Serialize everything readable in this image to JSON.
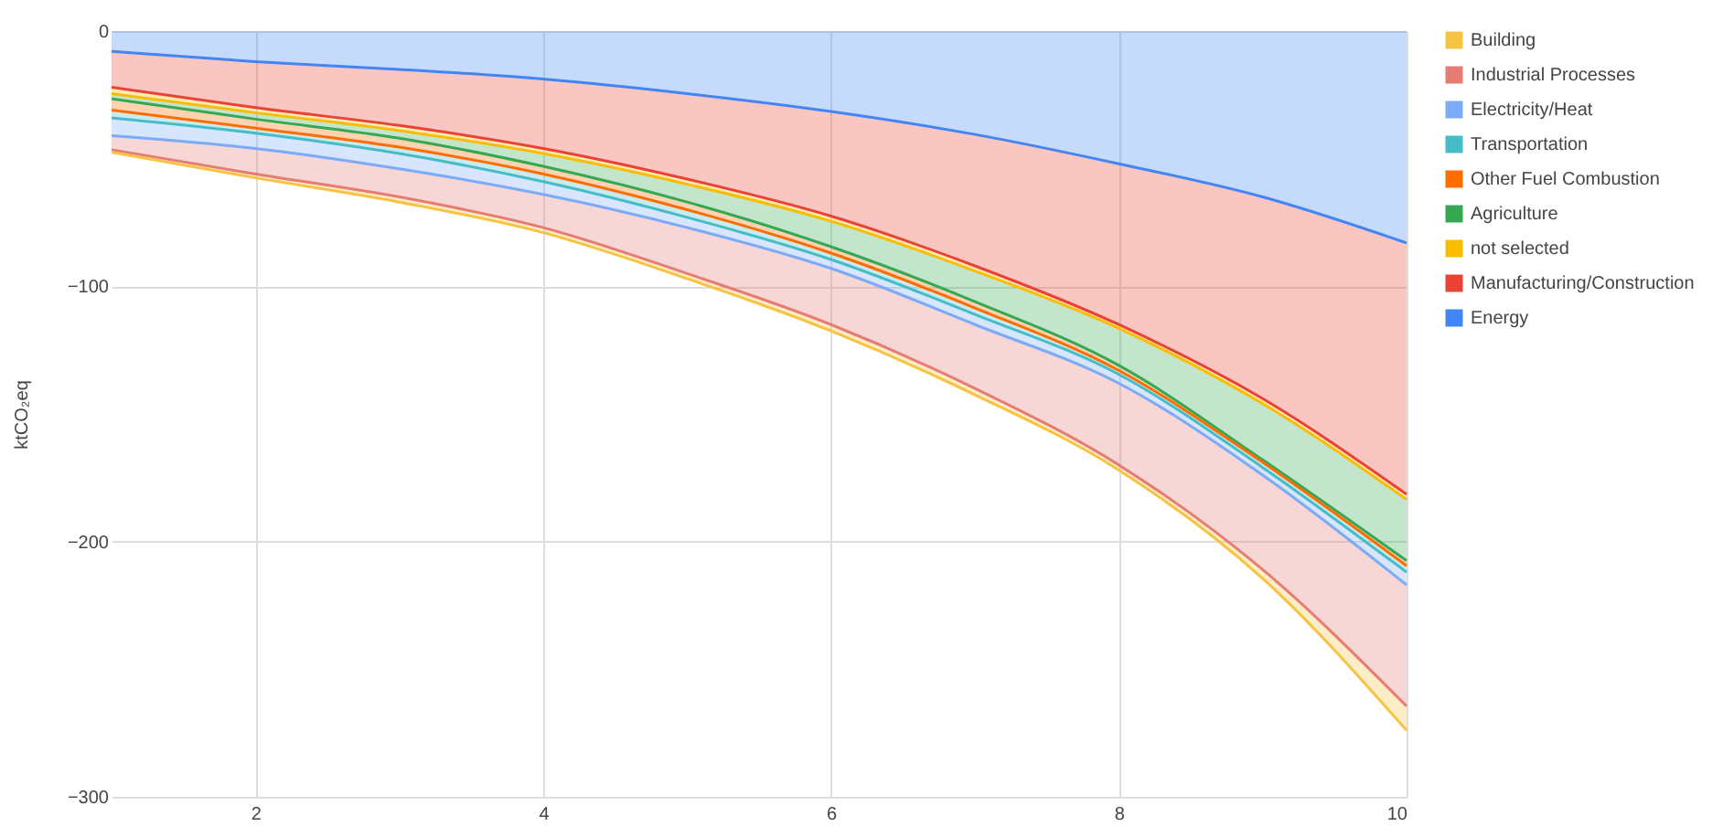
{
  "chart_data": {
    "type": "area",
    "stacked": true,
    "ylabel": "ktCO₂eq",
    "x": [
      1,
      2,
      3,
      4,
      5,
      6,
      7,
      8,
      9,
      10
    ],
    "xlim": [
      1,
      10
    ],
    "xticks": [
      2,
      4,
      6,
      8,
      10
    ],
    "ylim": [
      -300,
      0
    ],
    "yticks": [
      -300,
      -200,
      -100,
      0
    ],
    "grid": true,
    "legend": "top right",
    "series": [
      {
        "name": "Energy",
        "color": "#4285f4",
        "values": [
          -8,
          -12,
          -15,
          -18.8,
          -24.5,
          -31.5,
          -40.5,
          -52,
          -65,
          -83
        ]
      },
      {
        "name": "Manufacturing/Construction",
        "color": "#ea4335",
        "values": [
          -14,
          -18,
          -22,
          -27.2,
          -33.5,
          -41,
          -51.5,
          -63,
          -79,
          -98.5
        ]
      },
      {
        "name": "not selected",
        "color": "#fbbc04",
        "values": [
          -2.5,
          -2,
          -2,
          -2,
          -2,
          -2,
          -2,
          -1.5,
          -2,
          -2
        ]
      },
      {
        "name": "Agriculture",
        "color": "#34a853",
        "values": [
          -2,
          -2.5,
          -3,
          -5,
          -7,
          -10,
          -12,
          -14.5,
          -22,
          -24
        ]
      },
      {
        "name": "Other Fuel Combustion",
        "color": "#ff6d01",
        "values": [
          -4.5,
          -3.5,
          -3.5,
          -3,
          -3,
          -2.5,
          -2.5,
          -2,
          -1,
          -2
        ]
      },
      {
        "name": "Transportation",
        "color": "#46bdc6",
        "values": [
          -3,
          -2,
          -2.5,
          -3,
          -3,
          -2.5,
          -2.5,
          -1.5,
          -2,
          -2.5
        ]
      },
      {
        "name": "Electricity/Heat",
        "color": "#7baaf7",
        "values": [
          -7,
          -6,
          -6,
          -5,
          -4,
          -3.5,
          -4,
          -3.5,
          -3,
          -5
        ]
      },
      {
        "name": "Industrial Processes",
        "color": "#e67c73",
        "values": [
          -5.5,
          -10,
          -11,
          -13,
          -18,
          -22,
          -25,
          -32,
          -37,
          -47.5
        ]
      },
      {
        "name": "Building",
        "color": "#f6c342",
        "values": [
          -1,
          -1.5,
          -2,
          -2,
          -2,
          -2.5,
          -2.5,
          -2,
          -3.5,
          -9.5
        ]
      }
    ]
  }
}
